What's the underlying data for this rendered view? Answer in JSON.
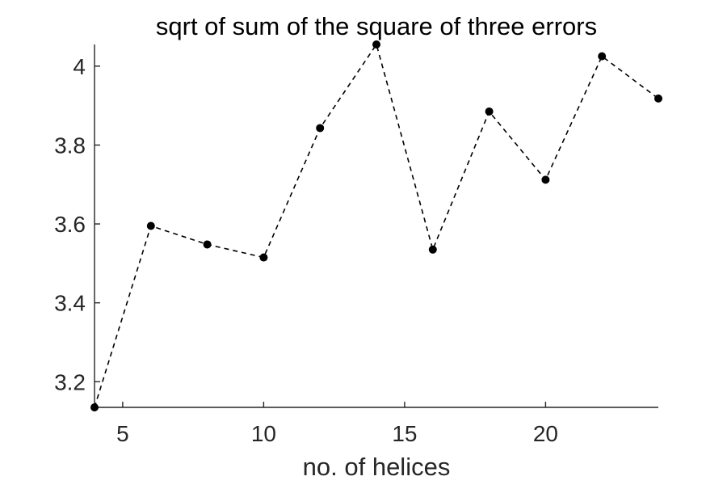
{
  "chart_data": {
    "type": "line",
    "title": "sqrt of sum of the square of three errors",
    "xlabel": "no. of helices",
    "ylabel": "",
    "xlim": [
      4,
      24
    ],
    "ylim": [
      3.135,
      4.055
    ],
    "xticks": [
      5,
      10,
      15,
      20
    ],
    "yticks": [
      3.2,
      3.4,
      3.6,
      3.8,
      4.0
    ],
    "xtick_labels": [
      "5",
      "10",
      "15",
      "20"
    ],
    "ytick_labels": [
      "3.2",
      "3.4",
      "3.6",
      "3.8",
      "4"
    ],
    "grid": false,
    "series": [
      {
        "x": [
          4,
          6,
          8,
          10,
          12,
          14,
          16,
          18,
          20,
          22,
          24
        ],
        "y": [
          3.135,
          3.595,
          3.548,
          3.515,
          3.843,
          4.055,
          3.535,
          3.885,
          3.712,
          4.025,
          3.918
        ],
        "line_style": "dashed",
        "marker": "filled-circle",
        "color": "#000000"
      }
    ]
  }
}
